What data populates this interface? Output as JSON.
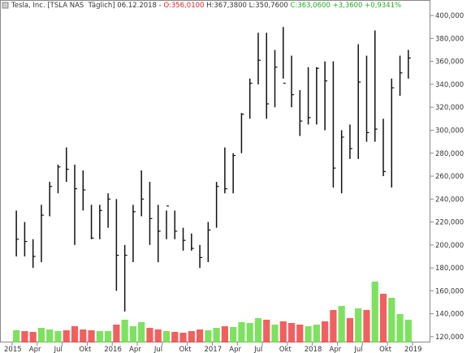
{
  "chart_data": {
    "type": "ohlc",
    "header": {
      "name": "Tesla, Inc.",
      "symbol": "[TSLA NAS  Täglich]",
      "date": "06.12.2018",
      "open": "O:356,0100",
      "high": "H:367,3800",
      "low": "L:350,7600",
      "close": "C:363,0600",
      "change": "+3,3600",
      "change_pct": "+0,9341%"
    },
    "x": [
      "2015-01",
      "2015-02",
      "2015-03",
      "2015-04",
      "2015-05",
      "2015-06",
      "2015-07",
      "2015-08",
      "2015-09",
      "2015-10",
      "2015-11",
      "2015-12",
      "2016-01",
      "2016-02",
      "2016-03",
      "2016-04",
      "2016-05",
      "2016-06",
      "2016-07",
      "2016-08",
      "2016-09",
      "2016-10",
      "2016-11",
      "2016-12",
      "2017-01",
      "2017-02",
      "2017-03",
      "2017-04",
      "2017-05",
      "2017-06",
      "2017-07",
      "2017-08",
      "2017-09",
      "2017-10",
      "2017-11",
      "2017-12",
      "2018-01",
      "2018-02",
      "2018-03",
      "2018-04",
      "2018-05",
      "2018-06",
      "2018-07",
      "2018-08",
      "2018-09",
      "2018-10",
      "2018-11",
      "2018-12"
    ],
    "high": [
      230,
      220,
      205,
      235,
      255,
      270,
      285,
      270,
      265,
      235,
      235,
      245,
      240,
      200,
      235,
      265,
      255,
      235,
      230,
      230,
      215,
      210,
      200,
      220,
      255,
      285,
      280,
      315,
      345,
      385,
      385,
      370,
      390,
      365,
      335,
      355,
      355,
      360,
      360,
      300,
      305,
      375,
      365,
      387,
      310,
      345,
      365,
      370
    ],
    "low": [
      190,
      190,
      180,
      185,
      225,
      245,
      255,
      200,
      230,
      205,
      205,
      215,
      160,
      142,
      185,
      225,
      200,
      185,
      205,
      205,
      195,
      195,
      180,
      185,
      215,
      245,
      245,
      280,
      310,
      340,
      310,
      320,
      345,
      320,
      295,
      305,
      305,
      300,
      250,
      245,
      275,
      275,
      290,
      290,
      260,
      250,
      330,
      345
    ],
    "close": [
      205,
      203,
      190,
      226,
      251,
      268,
      266,
      249,
      248,
      206,
      230,
      240,
      191,
      191,
      229,
      240,
      223,
      212,
      234,
      212,
      204,
      197,
      189,
      213,
      251,
      249,
      278,
      314,
      341,
      361,
      323,
      355,
      341,
      331,
      308,
      311,
      354,
      343,
      267,
      294,
      284,
      342,
      298,
      301,
      264,
      337,
      350,
      363
    ],
    "volume": [
      15,
      14,
      13,
      18,
      16,
      14,
      15,
      20,
      16,
      15,
      14,
      14,
      22,
      28,
      20,
      25,
      18,
      16,
      14,
      13,
      12,
      14,
      16,
      15,
      18,
      20,
      19,
      25,
      24,
      30,
      28,
      22,
      26,
      24,
      22,
      20,
      22,
      26,
      40,
      45,
      30,
      42,
      40,
      75,
      60,
      55,
      35,
      28
    ],
    "volume_lim": [
      0,
      100
    ],
    "bar_color": "#111111",
    "up_color": "#66dd44",
    "down_color": "#ee4444",
    "ylim": [
      115,
      410
    ],
    "yticks": [
      {
        "value": 120,
        "label": "120,000"
      },
      {
        "value": 140,
        "label": "140,000"
      },
      {
        "value": 160,
        "label": "160,000"
      },
      {
        "value": 180,
        "label": "180,000"
      },
      {
        "value": 200,
        "label": "200,000"
      },
      {
        "value": 220,
        "label": "220,000"
      },
      {
        "value": 240,
        "label": "240,000"
      },
      {
        "value": 260,
        "label": "260,000"
      },
      {
        "value": 280,
        "label": "280,000"
      },
      {
        "value": 300,
        "label": "300,000"
      },
      {
        "value": 320,
        "label": "320,000"
      },
      {
        "value": 340,
        "label": "340,000"
      },
      {
        "value": 360,
        "label": "360,000"
      },
      {
        "value": 380,
        "label": "380,000"
      },
      {
        "value": 400,
        "label": "400,000"
      }
    ],
    "xticks": [
      {
        "value": "2015-01",
        "label": "2015"
      },
      {
        "value": "2015-04",
        "label": "Apr"
      },
      {
        "value": "2015-07",
        "label": "Jul"
      },
      {
        "value": "2015-10",
        "label": "Okt"
      },
      {
        "value": "2016-01",
        "label": "2016"
      },
      {
        "value": "2016-04",
        "label": "Apr"
      },
      {
        "value": "2016-07",
        "label": "Jul"
      },
      {
        "value": "2016-10",
        "label": "Okt"
      },
      {
        "value": "2017-01",
        "label": "2017"
      },
      {
        "value": "2017-04",
        "label": "Apr"
      },
      {
        "value": "2017-07",
        "label": "Jul"
      },
      {
        "value": "2017-10",
        "label": "Okt"
      },
      {
        "value": "2018-01",
        "label": "2018"
      },
      {
        "value": "2018-04",
        "label": "Apr"
      },
      {
        "value": "2018-07",
        "label": "Jul"
      },
      {
        "value": "2018-10",
        "label": "Okt"
      },
      {
        "value": "2019-01",
        "label": "2019"
      }
    ]
  }
}
